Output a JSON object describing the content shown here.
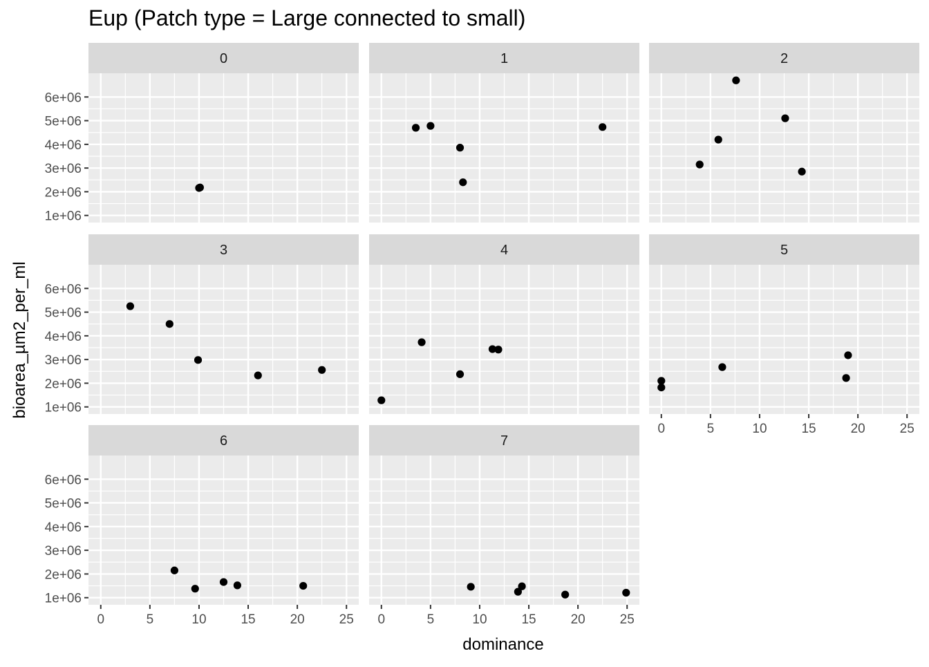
{
  "chart_data": {
    "type": "scatter",
    "title": "Eup (Patch type = Large connected to small)",
    "xlabel": "dominance",
    "ylabel": "bioarea_µm2_per_ml",
    "xlim": [
      -1.25,
      26.25
    ],
    "ylim": [
      700000,
      7000000
    ],
    "x_ticks": [
      0,
      5,
      10,
      15,
      20,
      25
    ],
    "y_ticks": [
      1000000,
      2000000,
      3000000,
      4000000,
      5000000,
      6000000
    ],
    "y_tick_labels": [
      "1e+06",
      "2e+06",
      "3e+06",
      "4e+06",
      "5e+06",
      "6e+06"
    ],
    "x_tick_labels": [
      "0",
      "5",
      "10",
      "15",
      "20",
      "25"
    ],
    "grid": true,
    "panels": [
      {
        "label": "0",
        "points": [
          [
            10.0,
            2160000
          ],
          [
            10.1,
            2180000
          ]
        ]
      },
      {
        "label": "1",
        "points": [
          [
            3.5,
            4700000
          ],
          [
            5.0,
            4780000
          ],
          [
            8.0,
            3860000
          ],
          [
            8.3,
            2400000
          ],
          [
            22.5,
            4730000
          ]
        ]
      },
      {
        "label": "2",
        "points": [
          [
            3.9,
            3150000
          ],
          [
            5.8,
            4200000
          ],
          [
            7.6,
            6700000
          ],
          [
            12.6,
            5100000
          ],
          [
            14.3,
            2850000
          ]
        ]
      },
      {
        "label": "3",
        "points": [
          [
            3.0,
            5250000
          ],
          [
            7.0,
            4500000
          ],
          [
            9.9,
            2980000
          ],
          [
            16.0,
            2330000
          ],
          [
            22.5,
            2560000
          ]
        ]
      },
      {
        "label": "4",
        "points": [
          [
            0.0,
            1280000
          ],
          [
            4.1,
            3730000
          ],
          [
            8.0,
            2380000
          ],
          [
            11.3,
            3440000
          ],
          [
            11.9,
            3420000
          ]
        ]
      },
      {
        "label": "5",
        "points": [
          [
            0.0,
            2100000
          ],
          [
            0.0,
            1820000
          ],
          [
            6.2,
            2680000
          ],
          [
            18.8,
            2220000
          ],
          [
            19.0,
            3180000
          ]
        ]
      },
      {
        "label": "6",
        "points": [
          [
            7.5,
            2150000
          ],
          [
            9.6,
            1380000
          ],
          [
            12.5,
            1660000
          ],
          [
            13.9,
            1520000
          ],
          [
            20.6,
            1500000
          ]
        ]
      },
      {
        "label": "7",
        "points": [
          [
            9.1,
            1460000
          ],
          [
            13.9,
            1250000
          ],
          [
            14.3,
            1480000
          ],
          [
            18.7,
            1130000
          ],
          [
            24.9,
            1210000
          ]
        ]
      }
    ]
  }
}
